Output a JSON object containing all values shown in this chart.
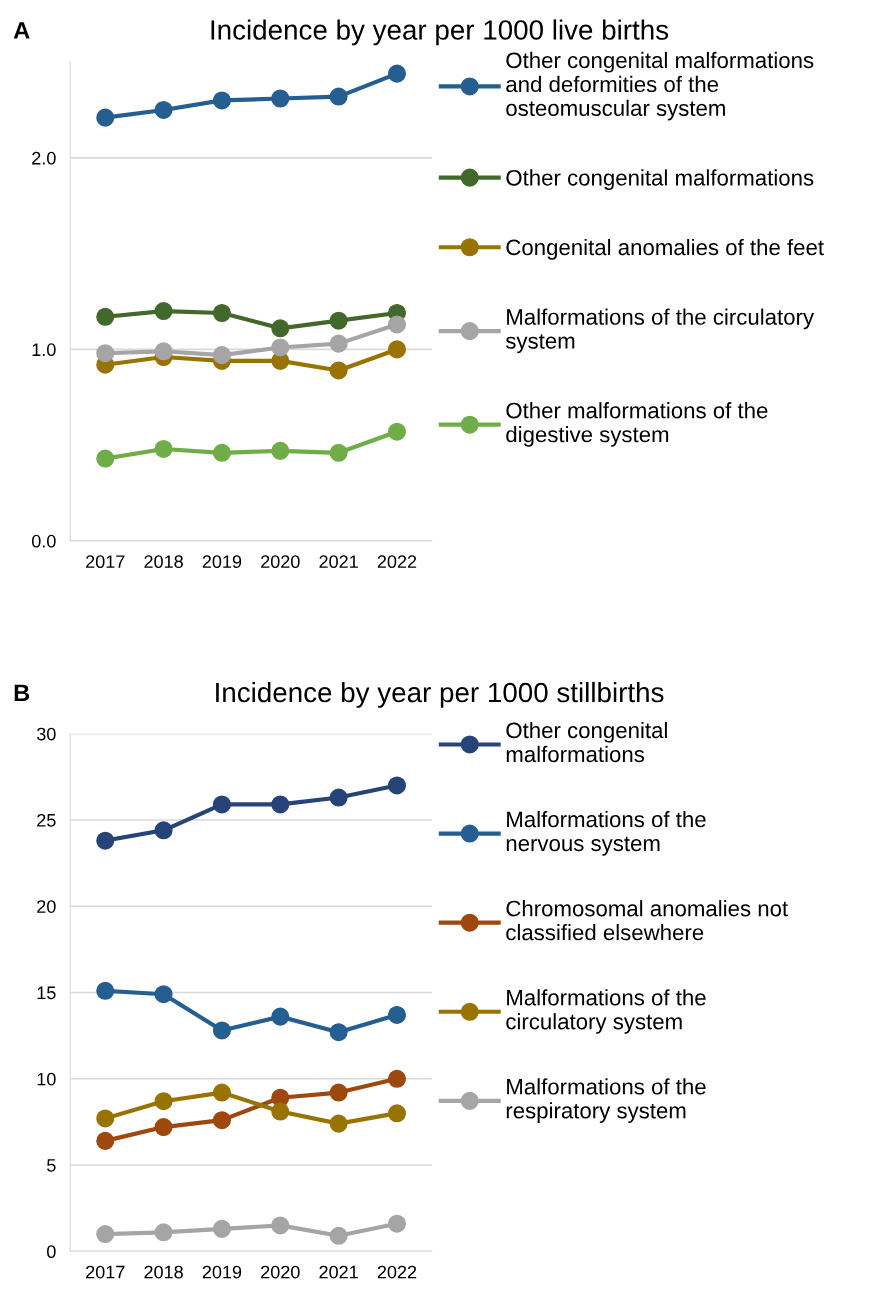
{
  "chart_data": [
    {
      "type": "line",
      "title": "Incidence by year per 1000 live births",
      "annotations": [
        "A"
      ],
      "categories": [
        "2017",
        "2018",
        "2019",
        "2020",
        "2021",
        "2022"
      ],
      "series": [
        {
          "name": "Other congenital malformations and deformities of the osteomuscular system",
          "color": "#255e91",
          "values": [
            2.21,
            2.25,
            2.3,
            2.31,
            2.32,
            2.44
          ]
        },
        {
          "name": "Other congenital malformations",
          "color": "#43682b",
          "values": [
            1.17,
            1.2,
            1.19,
            1.11,
            1.15,
            1.19
          ]
        },
        {
          "name": "Congenital anomalies of the feet",
          "color": "#997300",
          "values": [
            0.92,
            0.96,
            0.94,
            0.94,
            0.89,
            1.0
          ]
        },
        {
          "name": "Malformations of the circulatory system",
          "color": "#a5a5a5",
          "values": [
            0.98,
            0.99,
            0.97,
            1.01,
            1.03,
            1.13
          ]
        },
        {
          "name": "Other malformations of the digestive system",
          "color": "#70ad47",
          "values": [
            0.43,
            0.48,
            0.46,
            0.47,
            0.46,
            0.57
          ]
        }
      ],
      "ylim": [
        0,
        2.5
      ],
      "yticks": [
        {
          "value": 0,
          "label": "0.0"
        },
        {
          "value": 1,
          "label": "1.0"
        },
        {
          "value": 2,
          "label": "2.0"
        }
      ],
      "grid": "y",
      "legend": "right",
      "marker": "circle",
      "line_style": "solid"
    },
    {
      "type": "line",
      "title": "Incidence by year per 1000 stillbirths",
      "annotations": [
        "B"
      ],
      "categories": [
        "2017",
        "2018",
        "2019",
        "2020",
        "2021",
        "2022"
      ],
      "series": [
        {
          "name": "Other congenital malformations",
          "color": "#264478",
          "values": [
            23.8,
            24.4,
            25.9,
            25.9,
            26.3,
            27.0
          ]
        },
        {
          "name": "Malformations of the nervous system",
          "color": "#255e91",
          "values": [
            15.1,
            14.9,
            12.8,
            13.6,
            12.7,
            13.7
          ]
        },
        {
          "name": "Chromosomal anomalies not classified elsewhere",
          "color": "#9e480e",
          "values": [
            6.4,
            7.2,
            7.6,
            8.9,
            9.2,
            10.0
          ]
        },
        {
          "name": "Malformations of the circulatory system",
          "color": "#997300",
          "values": [
            7.7,
            8.7,
            9.2,
            8.1,
            7.4,
            8.0
          ]
        },
        {
          "name": "Malformations of the respiratory system",
          "color": "#a5a5a5",
          "values": [
            1.0,
            1.1,
            1.3,
            1.5,
            0.9,
            1.6
          ]
        }
      ],
      "ylim": [
        0,
        30
      ],
      "yticks": [
        0,
        5,
        10,
        15,
        20,
        25,
        30
      ],
      "grid": "y",
      "legend": "right",
      "marker": "circle",
      "line_style": "solid"
    }
  ]
}
